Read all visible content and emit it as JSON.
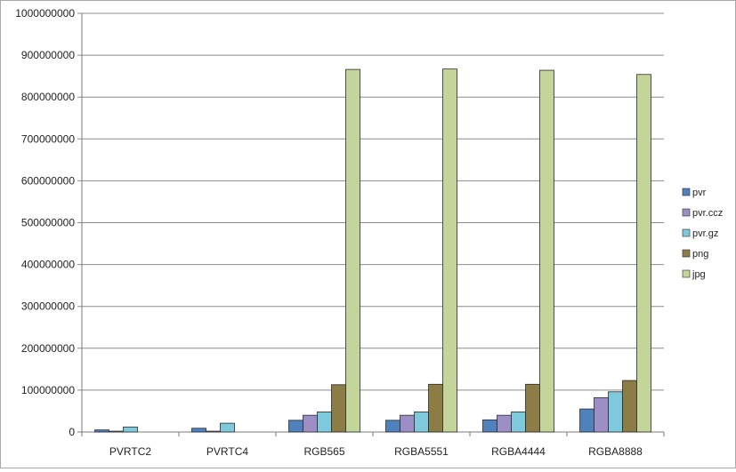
{
  "chart_data": {
    "type": "bar",
    "title": "",
    "xlabel": "",
    "ylabel": "",
    "ylim": [
      0,
      1000000000
    ],
    "yticks": [
      0,
      100000000,
      200000000,
      300000000,
      400000000,
      500000000,
      600000000,
      700000000,
      800000000,
      900000000,
      1000000000
    ],
    "grid": true,
    "legend_position": "right",
    "categories": [
      "PVRTC2",
      "PVRTC4",
      "RGB565",
      "RGBA5551",
      "RGBA4444",
      "RGBA8888"
    ],
    "series": [
      {
        "name": "pvr",
        "color": "#4f81bd",
        "values": [
          5000000,
          9000000,
          28000000,
          28000000,
          29000000,
          55000000
        ]
      },
      {
        "name": "pvr.ccz",
        "color": "#9d8fc6",
        "values": [
          2000000,
          2000000,
          40000000,
          40000000,
          40000000,
          82000000
        ]
      },
      {
        "name": "pvr.gz",
        "color": "#7fc9dd",
        "values": [
          12000000,
          21000000,
          48000000,
          48000000,
          48000000,
          96000000
        ]
      },
      {
        "name": "png",
        "color": "#8c7c46",
        "values": [
          0,
          0,
          113000000,
          114000000,
          114000000,
          123000000
        ]
      },
      {
        "name": "jpg",
        "color": "#c3d59a",
        "values": [
          0,
          0,
          866000000,
          867000000,
          864000000,
          854000000
        ]
      }
    ]
  }
}
